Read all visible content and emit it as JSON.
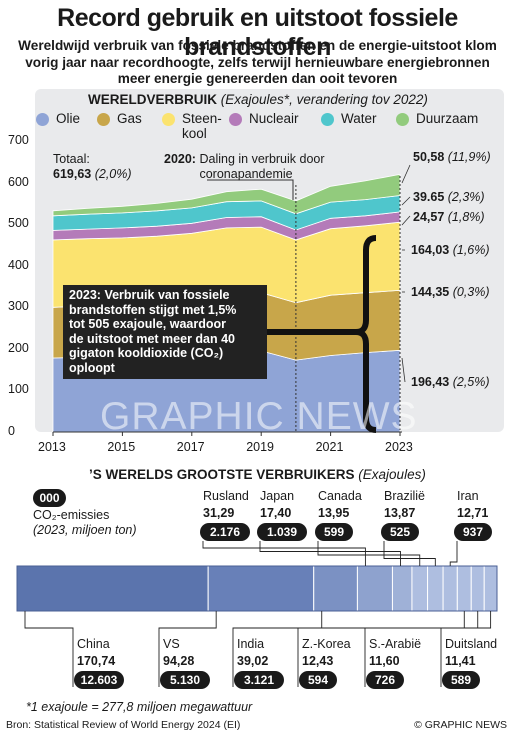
{
  "header": {
    "title": "Record gebruik en uitstoot fossiele brandstoffen",
    "subtitle": "Wereldwijd verbruik van fossiele brandstoffen en de energie-uitstoot klom vorig jaar naar recordhoogte, zelfs terwijl hernieuwbare energiebronnen meer energie genereerden dan ooit tevoren"
  },
  "section1": {
    "title_bold": "WERELDVERBRUIK",
    "title_italic": "(Exajoules*, verandering tov 2022)",
    "total_label": "Totaal:",
    "total_value": "619,63",
    "total_change": "(2,0%)",
    "note_2020_bold": "2020:",
    "note_2020_text": "Daling in verbruik door coronapandemie",
    "note_2023_line1": "2023: Verbruik van fossiele",
    "note_2023_line2": "brandstoffen stijgt met 1,5%",
    "note_2023_line3": "tot 505 exajoule, waardoor",
    "note_2023_line4": "de uitstoot met meer dan 40",
    "note_2023_line5": "gigaton kooldioxide (CO₂)",
    "note_2023_line6": "oploopt",
    "watermark": "GRAPHIC NEWS"
  },
  "legend": [
    {
      "label": "Olie",
      "color": "#8fa4d6"
    },
    {
      "label": "Gas",
      "color": "#c8a64a"
    },
    {
      "label": "Steen-\nkool",
      "color": "#fbe36f"
    },
    {
      "label": "Nucleair",
      "color": "#b47bb9"
    },
    {
      "label": "Water",
      "color": "#4fc6cc"
    },
    {
      "label": "Duurzaam",
      "color": "#92cb7d"
    }
  ],
  "end_labels": [
    {
      "value": "50,58",
      "change": "(11,9%)"
    },
    {
      "value": "39.65",
      "change": "(2,3%)"
    },
    {
      "value": "24,57",
      "change": "(1,8%)"
    },
    {
      "value": "164,03",
      "change": "(1,6%)"
    },
    {
      "value": "144,35",
      "change": "(0,3%)"
    },
    {
      "value": "196,43",
      "change": "(2,5%)"
    }
  ],
  "chart_data": {
    "type": "area",
    "title": "WERELDVERBRUIK",
    "subtitle": "(Exajoules*, verandering tov 2022)",
    "x": [
      2013,
      2014,
      2015,
      2016,
      2017,
      2018,
      2019,
      2020,
      2021,
      2022,
      2023
    ],
    "x_tick_labels": [
      "2013",
      "2015",
      "2017",
      "2019",
      "2021",
      "2023"
    ],
    "y_ticks": [
      0,
      100,
      200,
      300,
      400,
      500,
      600,
      700
    ],
    "ylim": [
      0,
      700
    ],
    "stacked": true,
    "grid": false,
    "series": [
      {
        "name": "Olie",
        "color": "#8fa4d6",
        "values": [
          178,
          180,
          184,
          187,
          190,
          193,
          195,
          173,
          184,
          191,
          196.43
        ]
      },
      {
        "name": "Gas",
        "color": "#c8a64a",
        "values": [
          122,
          123,
          125,
          128,
          131,
          138,
          140,
          138,
          145,
          144,
          144.35
        ]
      },
      {
        "name": "Steen-kool",
        "color": "#fbe36f",
        "values": [
          162,
          162,
          158,
          156,
          157,
          160,
          158,
          151,
          160,
          161,
          164.03
        ]
      },
      {
        "name": "Nucleair",
        "color": "#b47bb9",
        "values": [
          23,
          23,
          24,
          24,
          24,
          25,
          25,
          24,
          25,
          24,
          24.57
        ]
      },
      {
        "name": "Water",
        "color": "#4fc6cc",
        "values": [
          35,
          36,
          36,
          37,
          37,
          38,
          38,
          39,
          39,
          39,
          39.65
        ]
      },
      {
        "name": "Duurzaam",
        "color": "#92cb7d",
        "values": [
          12,
          14,
          16,
          18,
          21,
          24,
          28,
          31,
          38,
          45,
          50.58
        ]
      }
    ]
  },
  "section2": {
    "title_bold": "’S WERELDS GROOTSTE VERBRUIKERS",
    "title_italic": "(Exajoules)",
    "co2_sample": "000",
    "co2_note_line1": "CO₂-emissies",
    "co2_note_line2": "(2023, miljoen ton)",
    "bar_colors": [
      "#5b74ad",
      "#6880b8",
      "#7b91c3",
      "#8ea2ce",
      "#9fb1d7",
      "#aebee0"
    ],
    "countries": [
      {
        "name": "China",
        "value": "170,74",
        "co2": "12.603",
        "num": 170.74
      },
      {
        "name": "VS",
        "value": "94,28",
        "co2": "5.130",
        "num": 94.28
      },
      {
        "name": "India",
        "value": "39,02",
        "co2": "3.121",
        "num": 39.02
      },
      {
        "name": "Rusland",
        "value": "31,29",
        "co2": "2.176",
        "num": 31.29
      },
      {
        "name": "Japan",
        "value": "17,40",
        "co2": "1.039",
        "num": 17.4
      },
      {
        "name": "Canada",
        "value": "13,95",
        "co2": "599",
        "num": 13.95
      },
      {
        "name": "Brazilië",
        "value": "13,87",
        "co2": "525",
        "num": 13.87
      },
      {
        "name": "Iran",
        "value": "12,71",
        "co2": "937",
        "num": 12.71
      },
      {
        "name": "Z.-Korea",
        "value": "12,43",
        "co2": "594",
        "num": 12.43
      },
      {
        "name": "S.-Arabië",
        "value": "11,60",
        "co2": "726",
        "num": 11.6
      },
      {
        "name": "Duitsland",
        "value": "11,41",
        "co2": "589",
        "num": 11.41
      }
    ]
  },
  "footer": {
    "footnote": "*1 exajoule = 277,8 miljoen megawattuur",
    "source": "Bron: Statistical Review of World Energy 2024 (EI)",
    "copyright": "© GRAPHIC NEWS"
  }
}
